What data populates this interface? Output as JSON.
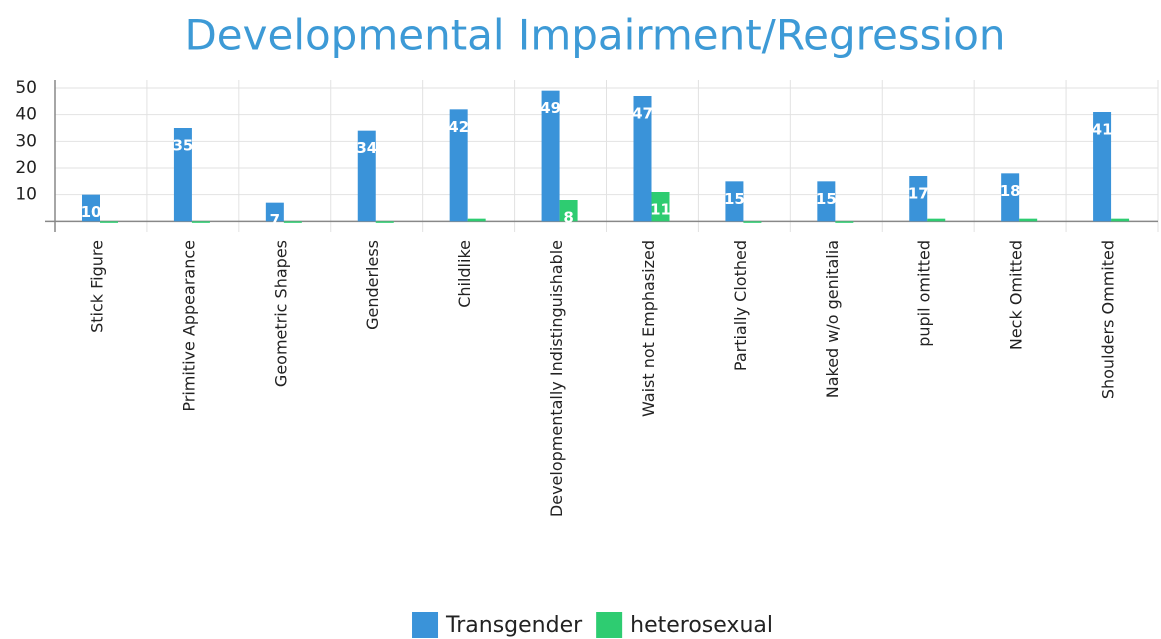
{
  "chart_data": {
    "type": "bar",
    "title": "Developmental Impairment/Regression",
    "categories": [
      "Stick Figure",
      "Primitive Appearance",
      "Geometric Shapes",
      "Genderless",
      "Childlike",
      "Developmentally Indistinguishable",
      "Waist not Emphasized",
      "Partially Clothed",
      "Naked w/o genitalia",
      "pupil omitted",
      "Neck Omitted",
      "Shoulders Ommited"
    ],
    "series": [
      {
        "name": "Transgender",
        "color": "#3a93d9",
        "values": [
          10,
          35,
          7,
          34,
          42,
          49,
          47,
          15,
          15,
          17,
          18,
          41
        ],
        "value_labels": [
          "10",
          "35",
          "7",
          "34",
          "42",
          "49",
          "47",
          "15",
          "15",
          "17",
          "18",
          "41"
        ]
      },
      {
        "name": "heterosexual",
        "color": "#2ecc71",
        "values": [
          0,
          0,
          0,
          0,
          1,
          8,
          11,
          0,
          0,
          1,
          1,
          1
        ],
        "value_labels": [
          null,
          null,
          null,
          null,
          null,
          "8",
          "11",
          null,
          null,
          null,
          null,
          null
        ]
      }
    ],
    "ylim": [
      -4,
      53
    ],
    "yticks": [
      10,
      20,
      30,
      40,
      50
    ],
    "grid": true,
    "legend": "bottom"
  }
}
